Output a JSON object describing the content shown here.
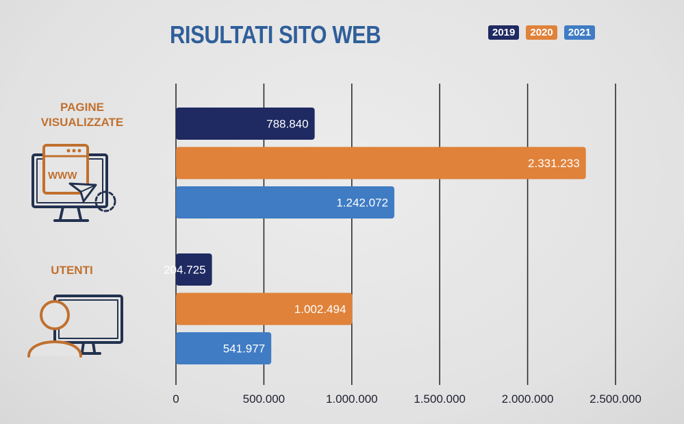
{
  "title": "RISULTATI SITO WEB",
  "colors": {
    "title": "#2f5f9a",
    "label": "#c0702e",
    "2019": "#1f2a62",
    "2020": "#e0823a",
    "2021": "#3f7cc4",
    "icon_dark": "#22314f",
    "icon_orange": "#c0702e"
  },
  "legend": [
    "2019",
    "2020",
    "2021"
  ],
  "groups": [
    {
      "label_line1": "PAGINE",
      "label_line2": "VISUALIZZATE",
      "icon": "web-page-monitor-icon"
    },
    {
      "label_line1": "UTENTI",
      "label_line2": "",
      "icon": "user-monitor-icon"
    }
  ],
  "chart_data": {
    "type": "bar",
    "orientation": "horizontal",
    "title": "RISULTATI SITO WEB",
    "categories": [
      "PAGINE VISUALIZZATE",
      "UTENTI"
    ],
    "series": [
      {
        "name": "2019",
        "values": [
          788840,
          204725
        ],
        "labels": [
          "788.840",
          "204.725"
        ]
      },
      {
        "name": "2020",
        "values": [
          2331233,
          1002494
        ],
        "labels": [
          "2.331.233",
          "1.002.494"
        ]
      },
      {
        "name": "2021",
        "values": [
          1242072,
          541977
        ],
        "labels": [
          "1.242.072",
          "541.977"
        ]
      }
    ],
    "xlim": [
      0,
      2500000
    ],
    "xticks": [
      0,
      500000,
      1000000,
      1500000,
      2000000,
      2500000
    ],
    "xtick_labels": [
      "0",
      "500.000",
      "1.000.000",
      "1.500.000",
      "2.000.000",
      "2.500.000"
    ],
    "grid": "vertical",
    "legend_position": "top-right"
  }
}
